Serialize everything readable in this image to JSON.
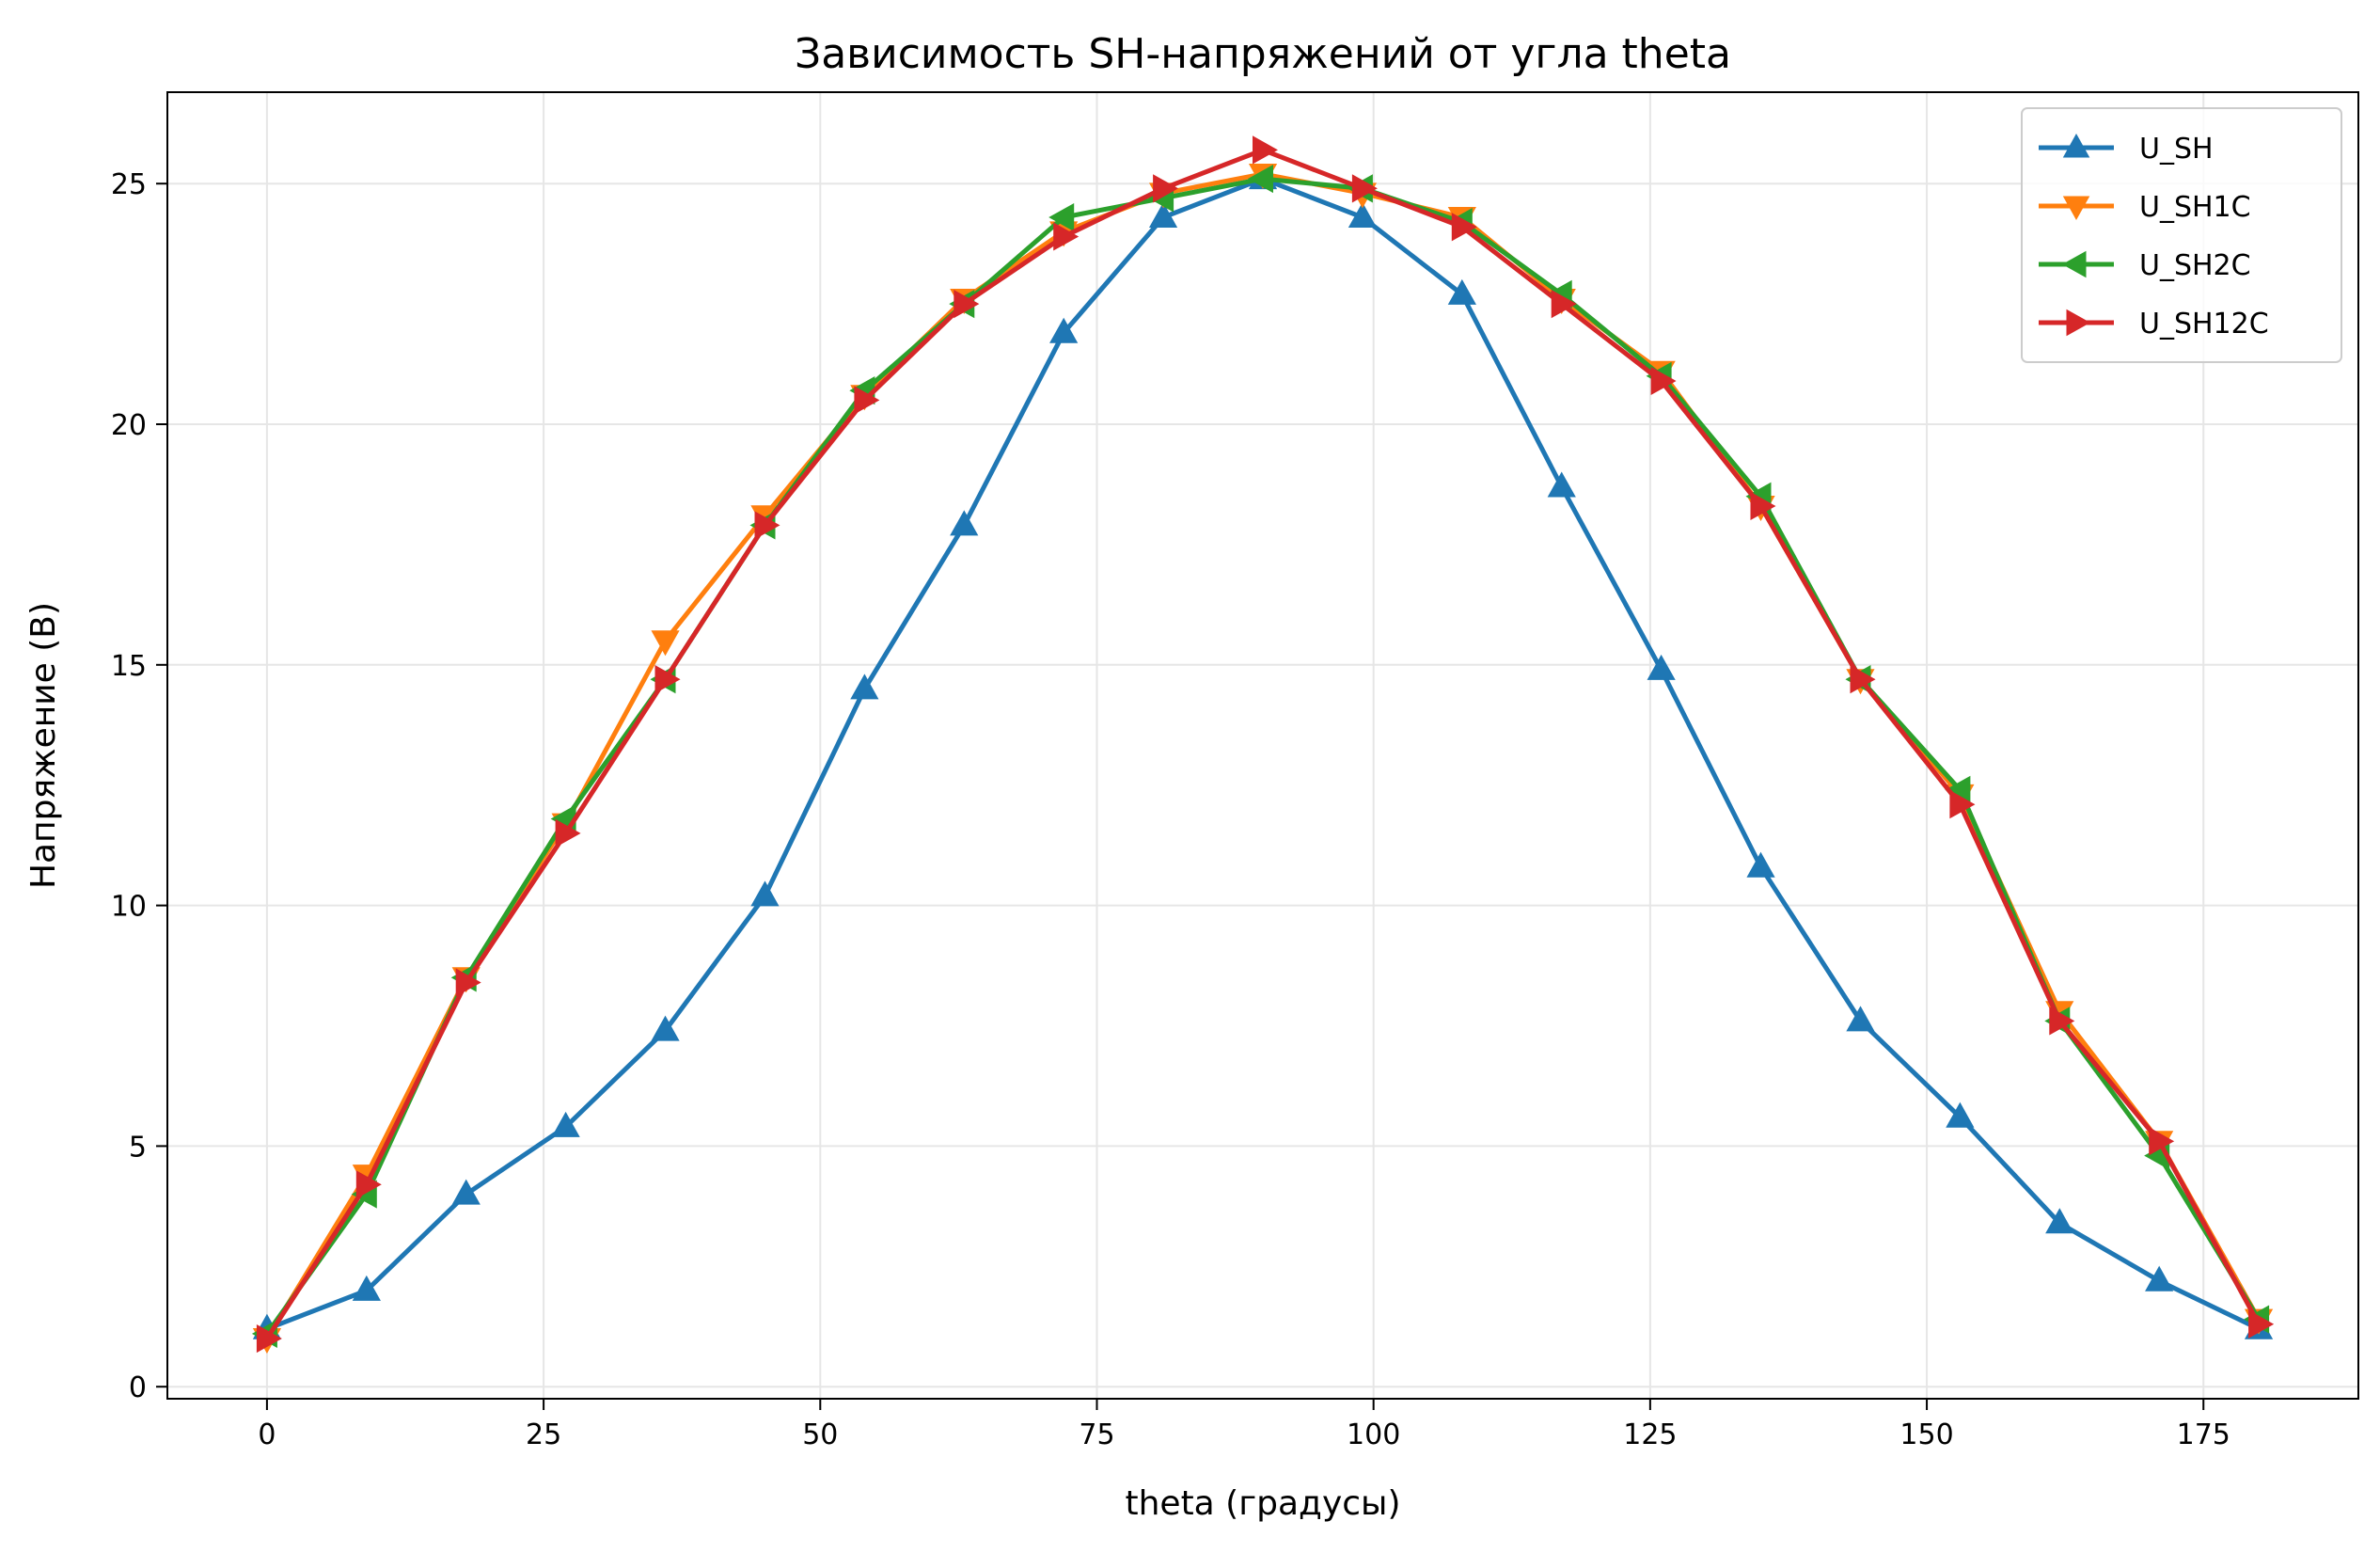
{
  "chart_data": {
    "type": "line",
    "title": "Зависимость SH-напряжений от угла theta",
    "xlabel": "theta (градусы)",
    "ylabel": "Напряжение (В)",
    "xlim": [
      -9,
      189
    ],
    "ylim": [
      -0.25,
      26.9
    ],
    "xticks": [
      0,
      25,
      50,
      75,
      100,
      125,
      150,
      175
    ],
    "yticks": [
      0,
      5,
      10,
      15,
      20,
      25
    ],
    "grid": true,
    "legend_position": "top-right",
    "x": [
      0,
      9,
      18,
      27,
      36,
      45,
      54,
      63,
      72,
      81,
      90,
      99,
      108,
      117,
      126,
      135,
      144,
      153,
      162,
      171,
      180
    ],
    "series": [
      {
        "name": "U_SH",
        "color": "#1f77b4",
        "marker": "triangle-up",
        "values": [
          1.2,
          2.0,
          4.0,
          5.4,
          7.4,
          10.2,
          14.5,
          17.9,
          21.9,
          24.3,
          25.1,
          24.3,
          22.7,
          18.7,
          14.9,
          10.8,
          7.6,
          5.6,
          3.4,
          2.2,
          1.2
        ]
      },
      {
        "name": "U_SH1C",
        "color": "#ff7f0e",
        "marker": "triangle-down",
        "values": [
          1.0,
          4.4,
          8.5,
          11.7,
          15.5,
          18.1,
          20.6,
          22.6,
          24.0,
          24.8,
          25.2,
          24.8,
          24.3,
          22.6,
          21.1,
          18.3,
          14.7,
          12.3,
          7.8,
          5.1,
          1.4
        ]
      },
      {
        "name": "U_SH2C",
        "color": "#2ca02c",
        "marker": "triangle-left",
        "values": [
          1.1,
          4.0,
          8.5,
          11.8,
          14.7,
          17.9,
          20.7,
          22.5,
          24.3,
          24.7,
          25.1,
          24.9,
          24.2,
          22.7,
          21.0,
          18.5,
          14.7,
          12.4,
          7.6,
          4.8,
          1.4
        ]
      },
      {
        "name": "U_SH12C",
        "color": "#d62728",
        "marker": "triangle-right",
        "values": [
          1.0,
          4.2,
          8.4,
          11.5,
          14.7,
          17.9,
          20.5,
          22.5,
          23.9,
          24.9,
          25.7,
          24.9,
          24.1,
          22.5,
          20.9,
          18.3,
          14.7,
          12.1,
          7.6,
          5.1,
          1.3
        ]
      }
    ]
  }
}
